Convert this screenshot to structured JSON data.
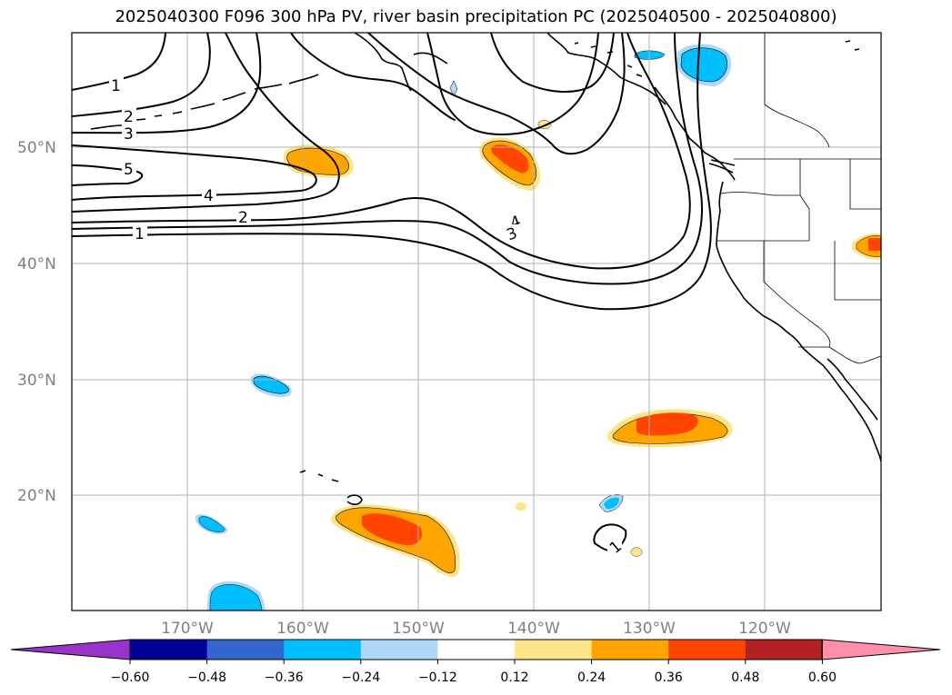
{
  "title": "2025040300 F096 300 hPa PV, river basin precipitation PC (2025040500 - 2025040800)",
  "map": {
    "latitude_labels": [
      "50°N",
      "40°N",
      "30°N",
      "20°N"
    ],
    "longitude_labels": [
      "170°W",
      "160°W",
      "150°W",
      "140°W",
      "130°W",
      "120°W"
    ],
    "pv_contour_labels": [
      "1",
      "2",
      "3",
      "5",
      "4",
      "2",
      "1",
      "4",
      "3",
      "1"
    ],
    "colors": {
      "pv_contour": "#000000",
      "gridline": "#b0b0b0",
      "coastline": "#000000"
    }
  },
  "colorbar": {
    "tick_labels": [
      "−0.60",
      "−0.48",
      "−0.36",
      "−0.24",
      "−0.12",
      "0.12",
      "0.24",
      "0.36",
      "0.48",
      "0.60"
    ],
    "colors": [
      "#9933cc",
      "#000099",
      "#3366cc",
      "#00bfff",
      "#add8f7",
      "#ffffff",
      "#fde68a",
      "#ffa500",
      "#ff4500",
      "#b22222",
      "#ff8fab"
    ]
  }
}
